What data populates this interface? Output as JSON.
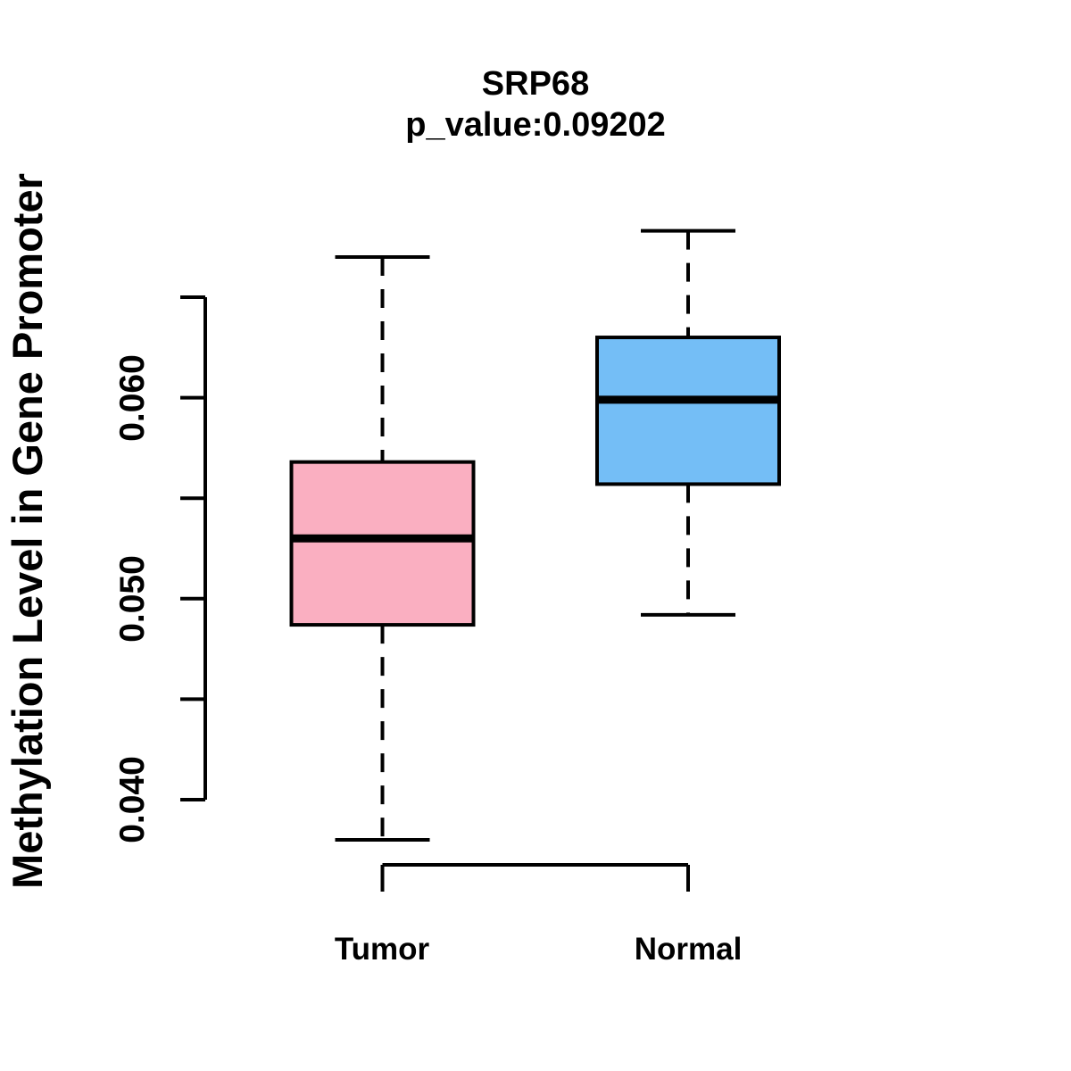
{
  "title": {
    "gene": "SRP68",
    "p_value_line": "p_value:0.09202"
  },
  "y_axis": {
    "label": "Methylation Level in Gene Promoter",
    "tick_labels_top_to_bottom": [
      "0.060",
      "0.050",
      "0.040"
    ]
  },
  "x_axis": {
    "group_labels": [
      "Tumor",
      "Normal"
    ]
  },
  "colors": {
    "tumor_box": "#FAAFC1",
    "normal_box": "#74BEF6",
    "line": "#000000",
    "background": "#FFFFFF"
  },
  "chart_data": {
    "type": "boxplot",
    "title": "SRP68",
    "subtitle": "p_value:0.09202",
    "xlabel": "",
    "ylabel": "Methylation Level in Gene Promoter",
    "ylim": [
      0.04,
      0.065
    ],
    "yticks": [
      0.04,
      0.045,
      0.05,
      0.055,
      0.06,
      0.065
    ],
    "ytick_labels": [
      "0.040",
      "",
      "0.050",
      "",
      "0.060",
      ""
    ],
    "grid": false,
    "legend": false,
    "categories": [
      "Tumor",
      "Normal"
    ],
    "line_color": "#000000",
    "series": [
      {
        "name": "Tumor",
        "color": "#FAAFC1",
        "whisker_low": 0.038,
        "q1": 0.0487,
        "median": 0.053,
        "q3": 0.0568,
        "whisker_high": 0.067,
        "outliers": []
      },
      {
        "name": "Normal",
        "color": "#74BEF6",
        "whisker_low": 0.0492,
        "q1": 0.0557,
        "median": 0.0599,
        "q3": 0.063,
        "whisker_high": 0.0683,
        "outliers": []
      }
    ]
  }
}
